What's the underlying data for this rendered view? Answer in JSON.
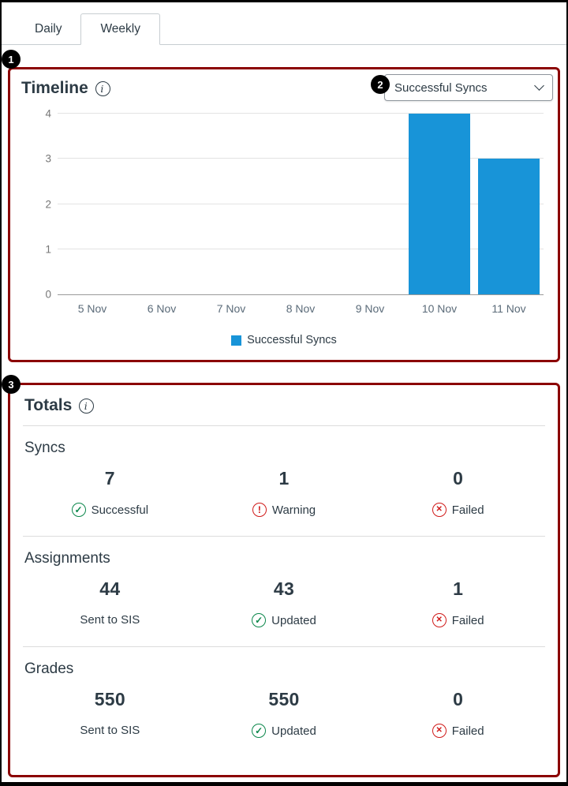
{
  "tabs": {
    "items": [
      {
        "label": "Daily"
      },
      {
        "label": "Weekly"
      }
    ],
    "active": "Weekly"
  },
  "annotations": {
    "callout1": "1",
    "callout2": "2",
    "callout3": "3",
    "box_color": "#8B0000"
  },
  "timeline": {
    "title": "Timeline",
    "info_icon": "i",
    "dropdown": {
      "value": "Successful Syncs"
    }
  },
  "chart_data": {
    "type": "bar",
    "title": "",
    "categories": [
      "5 Nov",
      "6 Nov",
      "7 Nov",
      "8 Nov",
      "9 Nov",
      "10 Nov",
      "11 Nov"
    ],
    "series": [
      {
        "name": "Successful Syncs",
        "values": [
          0,
          0,
          0,
          0,
          0,
          4,
          3
        ]
      }
    ],
    "ylim": [
      0,
      4
    ],
    "yticks": [
      0,
      1,
      2,
      3,
      4
    ],
    "grid": true,
    "legend": {
      "position": "bottom",
      "entries": [
        "Successful Syncs"
      ]
    },
    "bar_color": "#1894d8"
  },
  "totals": {
    "title": "Totals",
    "info_icon": "i",
    "groups": [
      {
        "label": "Syncs",
        "stats": [
          {
            "value": "7",
            "icon": "check-circle",
            "label": "Successful"
          },
          {
            "value": "1",
            "icon": "warning-circle",
            "label": "Warning"
          },
          {
            "value": "0",
            "icon": "x-circle",
            "label": "Failed"
          }
        ]
      },
      {
        "label": "Assignments",
        "stats": [
          {
            "value": "44",
            "icon": "none",
            "label": "Sent to SIS"
          },
          {
            "value": "43",
            "icon": "check-circle",
            "label": "Updated"
          },
          {
            "value": "1",
            "icon": "x-circle",
            "label": "Failed"
          }
        ]
      },
      {
        "label": "Grades",
        "stats": [
          {
            "value": "550",
            "icon": "none",
            "label": "Sent to SIS"
          },
          {
            "value": "550",
            "icon": "check-circle",
            "label": "Updated"
          },
          {
            "value": "0",
            "icon": "x-circle",
            "label": "Failed"
          }
        ]
      }
    ]
  }
}
